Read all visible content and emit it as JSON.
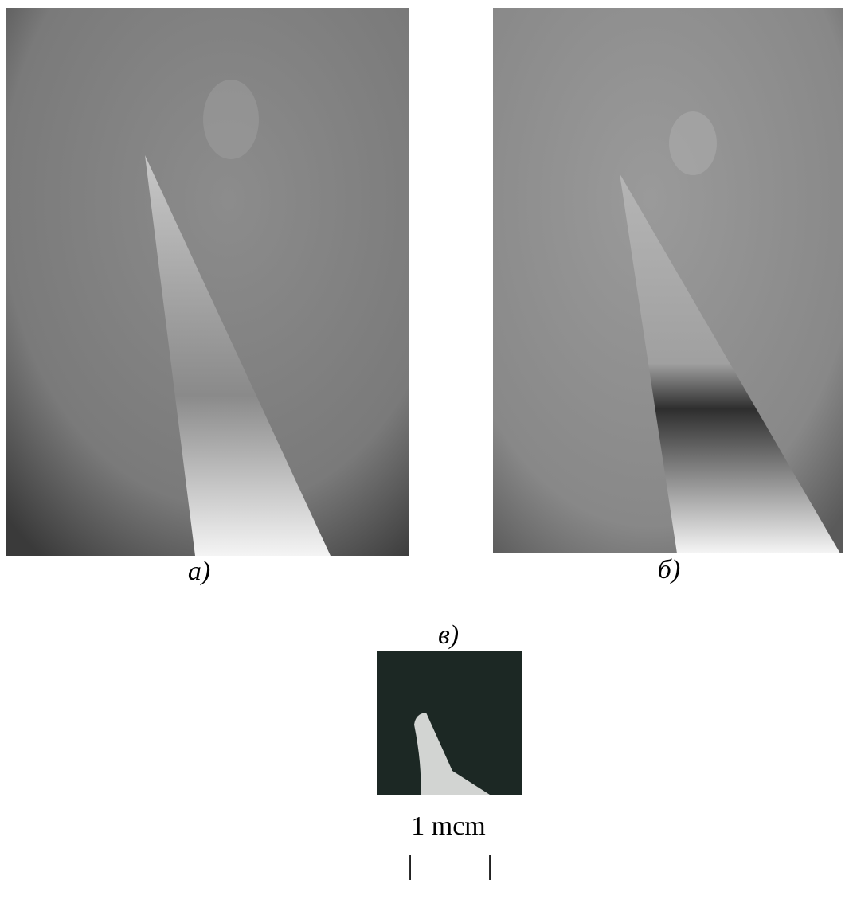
{
  "panels": [
    {
      "label": "а)"
    },
    {
      "label": "б)"
    },
    {
      "label": "в)"
    }
  ],
  "scale_bar": {
    "label": "1 mcm",
    "left_mark": "|",
    "right_mark": "|"
  }
}
